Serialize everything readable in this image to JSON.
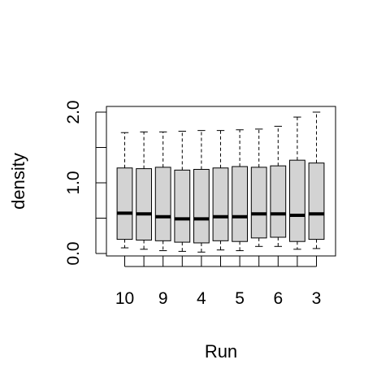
{
  "chart_data": {
    "type": "boxplot",
    "title": "",
    "xlabel": "Run",
    "ylabel": "density",
    "ylim": [
      0,
      2.1
    ],
    "yticks": [
      0.0,
      0.5,
      1.0,
      1.5,
      2.0
    ],
    "ytick_labels": [
      "0.0",
      "",
      "1.0",
      "",
      "2.0"
    ],
    "grid": false,
    "legend": "none",
    "categories": [
      "10",
      "",
      "9",
      "",
      "4",
      "",
      "5",
      "",
      "6",
      "",
      "3"
    ],
    "xtick_labels": [
      "10",
      "9",
      "4",
      "5",
      "6",
      "3"
    ],
    "box_fill": "#d3d3d3",
    "line_color": "#000000",
    "boxes": [
      {
        "min": 0.08,
        "q1": 0.2,
        "median": 0.57,
        "q3": 1.21,
        "max": 1.71
      },
      {
        "min": 0.06,
        "q1": 0.19,
        "median": 0.56,
        "q3": 1.2,
        "max": 1.72
      },
      {
        "min": 0.04,
        "q1": 0.18,
        "median": 0.52,
        "q3": 1.22,
        "max": 1.72
      },
      {
        "min": 0.03,
        "q1": 0.16,
        "median": 0.49,
        "q3": 1.18,
        "max": 1.73
      },
      {
        "min": 0.02,
        "q1": 0.15,
        "median": 0.49,
        "q3": 1.19,
        "max": 1.74
      },
      {
        "min": 0.05,
        "q1": 0.18,
        "median": 0.52,
        "q3": 1.21,
        "max": 1.74
      },
      {
        "min": 0.04,
        "q1": 0.17,
        "median": 0.52,
        "q3": 1.23,
        "max": 1.75
      },
      {
        "min": 0.1,
        "q1": 0.22,
        "median": 0.56,
        "q3": 1.22,
        "max": 1.76
      },
      {
        "min": 0.1,
        "q1": 0.23,
        "median": 0.56,
        "q3": 1.24,
        "max": 1.8
      },
      {
        "min": 0.06,
        "q1": 0.17,
        "median": 0.54,
        "q3": 1.32,
        "max": 1.93
      },
      {
        "min": 0.07,
        "q1": 0.2,
        "median": 0.56,
        "q3": 1.28,
        "max": 2.0
      }
    ]
  }
}
